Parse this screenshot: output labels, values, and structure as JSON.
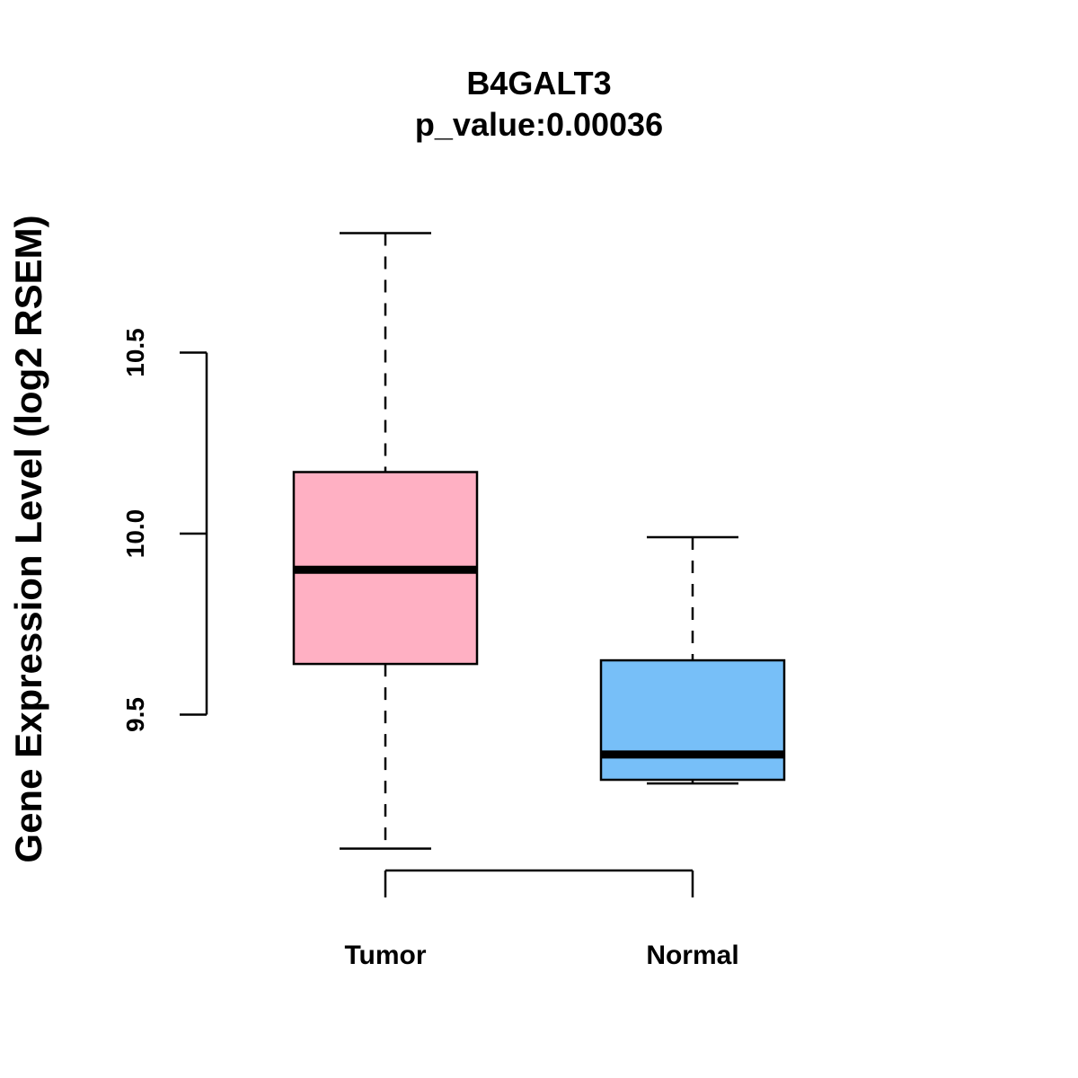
{
  "chart_data": {
    "type": "boxplot",
    "title": "B4GALT3",
    "subtitle": "p_value:0.00036",
    "xlabel": "",
    "ylabel": "Gene Expression Level (log2 RSEM)",
    "yticks": [
      9.5,
      10.0,
      10.5
    ],
    "ytick_labels": [
      "9.5",
      "10.0",
      "10.5"
    ],
    "categories": [
      "Tumor",
      "Normal"
    ],
    "boxes": [
      {
        "name": "Tumor",
        "whisker_low": 9.13,
        "q1": 9.64,
        "median": 9.9,
        "q3": 10.17,
        "whisker_high": 10.83,
        "color": "#FFB0C3"
      },
      {
        "name": "Normal",
        "whisker_low": 9.31,
        "q1": 9.32,
        "median": 9.39,
        "q3": 9.65,
        "whisker_high": 9.99,
        "color": "#77BFF8"
      }
    ]
  }
}
